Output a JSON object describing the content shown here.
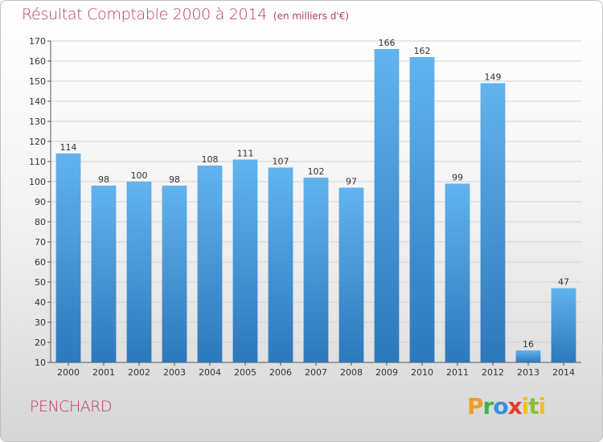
{
  "title": "Résultat Comptable 2000 à 2014",
  "unit_note": "(en milliers d'€)",
  "commune": "PENCHARD",
  "logo_text": "Proxiti",
  "colors": {
    "title": "#c0395e",
    "bar_top": "#5fb0ec",
    "bar_bottom": "#2f7cc0",
    "grid": "#d0d0d0"
  },
  "chart_data": {
    "type": "bar",
    "categories": [
      "2000",
      "2001",
      "2002",
      "2003",
      "2004",
      "2005",
      "2006",
      "2007",
      "2008",
      "2009",
      "2010",
      "2011",
      "2012",
      "2013",
      "2014"
    ],
    "values": [
      114,
      98,
      100,
      98,
      108,
      111,
      107,
      102,
      97,
      166,
      162,
      99,
      149,
      16,
      47
    ],
    "title": "Résultat Comptable 2000 à 2014",
    "ylim": [
      10,
      170
    ],
    "yticks": [
      10,
      20,
      30,
      40,
      50,
      60,
      70,
      80,
      90,
      100,
      110,
      120,
      130,
      140,
      150,
      160,
      170
    ],
    "grid": true,
    "data_labels": true
  }
}
